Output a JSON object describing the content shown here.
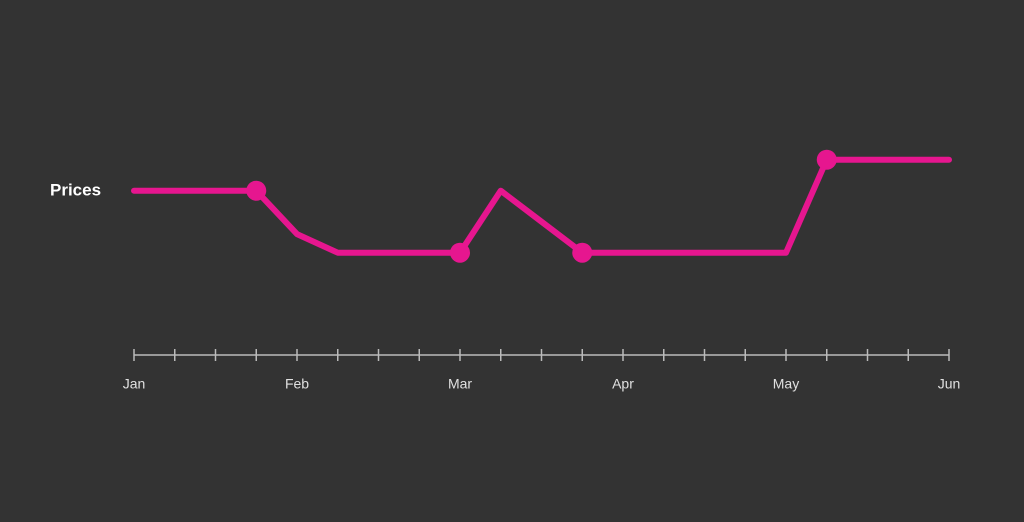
{
  "chart_data": {
    "type": "line",
    "series": [
      {
        "name": "Prices",
        "color": "#e6168f",
        "values": [
          5.3,
          5.3,
          5.3,
          5.3,
          3.9,
          3.3,
          3.3,
          3.3,
          3.3,
          5.3,
          4.3,
          3.3,
          3.3,
          3.3,
          3.3,
          3.3,
          3.3,
          6.3,
          6.3,
          6.3,
          6.3
        ]
      }
    ],
    "categories": [
      "Jan",
      null,
      null,
      null,
      "Feb",
      null,
      null,
      null,
      "Mar",
      null,
      null,
      null,
      "Apr",
      null,
      null,
      null,
      "May",
      null,
      null,
      null,
      "Jun"
    ],
    "markers": [
      3,
      8,
      11,
      17
    ],
    "ylim": [
      0,
      8
    ]
  }
}
